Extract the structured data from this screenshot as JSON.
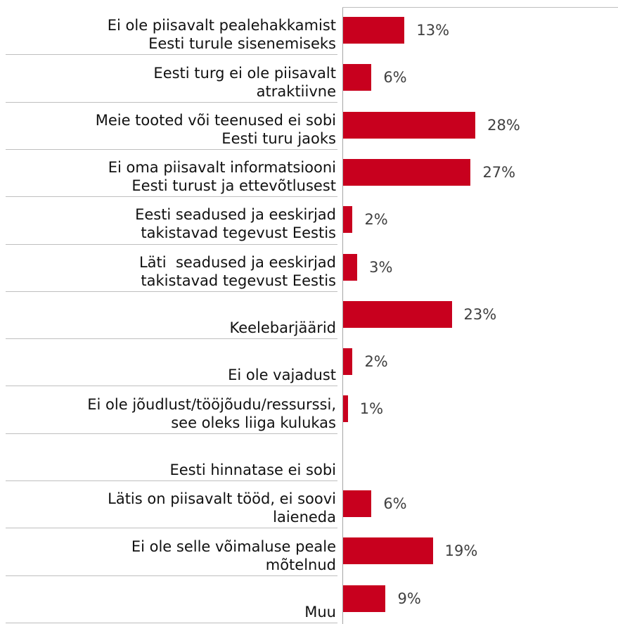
{
  "chart_data": {
    "type": "barh",
    "categories": [
      "Ei ole piisavalt pealehakkamist\nEesti turule sisenemiseks",
      "Eesti turg ei ole piisavalt\natraktiivne",
      "Meie tooted või teenused ei sobi\nEesti turu jaoks",
      "Ei oma piisavalt informatsiooni\nEesti turust ja ettevõtlusest",
      "Eesti seadused ja eeskirjad\ntakistavad tegevust Eestis",
      "Läti  seadused ja eeskirjad\ntakistavad tegevust Eestis",
      "Keelebarjäärid",
      "Ei ole vajadust",
      "Ei ole jõudlust/tööjõudu/ressurssi,\nsee oleks liiga kulukas",
      "Eesti hinnatase ei sobi",
      "Lätis on piisavalt tööd, ei soovi\nlaieneda",
      "Ei ole selle võimaluse peale\nmõtelnud",
      "Muu"
    ],
    "values": [
      13,
      6,
      28,
      27,
      2,
      3,
      23,
      2,
      1,
      null,
      6,
      19,
      9
    ],
    "value_labels": [
      "13%",
      "6%",
      "28%",
      "27%",
      "2%",
      "3%",
      "23%",
      "2%",
      "1%",
      null,
      "6%",
      "19%",
      "9%"
    ],
    "color": "#c8001e"
  }
}
